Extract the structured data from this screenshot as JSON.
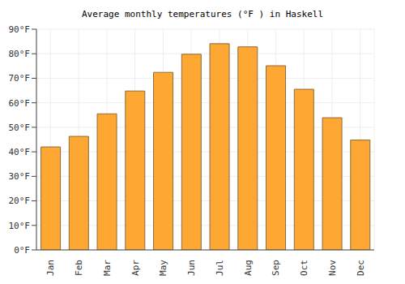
{
  "chart_data": {
    "type": "bar",
    "title": "Average monthly temperatures (°F ) in Haskell",
    "categories": [
      "Jan",
      "Feb",
      "Mar",
      "Apr",
      "May",
      "Jun",
      "Jul",
      "Aug",
      "Sep",
      "Oct",
      "Nov",
      "Dec"
    ],
    "values": [
      42,
      46.3,
      55.5,
      64.8,
      72.4,
      79.8,
      84.1,
      82.8,
      75.1,
      65.5,
      53.9,
      44.8
    ],
    "color": "#ffa733",
    "ylim": [
      0,
      90
    ],
    "yticks": [
      {
        "value": 0,
        "label": "0°F"
      },
      {
        "value": 10,
        "label": "10°F"
      },
      {
        "value": 20,
        "label": "20°F"
      },
      {
        "value": 30,
        "label": "30°F"
      },
      {
        "value": 40,
        "label": "40°F"
      },
      {
        "value": 50,
        "label": "50°F"
      },
      {
        "value": 60,
        "label": "60°F"
      },
      {
        "value": 70,
        "label": "70°F"
      },
      {
        "value": 80,
        "label": "80°F"
      },
      {
        "value": 90,
        "label": "90°F"
      }
    ],
    "grid": true
  }
}
